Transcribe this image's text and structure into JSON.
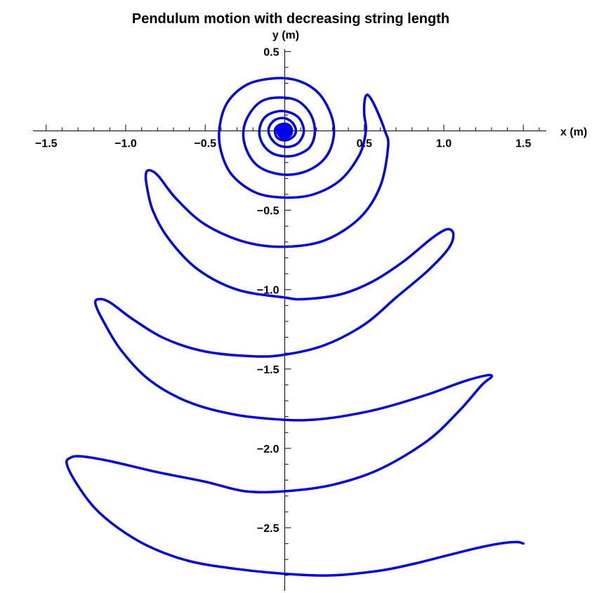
{
  "chart_data": {
    "type": "line",
    "title": "Pendulum motion with decreasing string length",
    "xlabel": "x (m)",
    "ylabel": "y (m)",
    "xlim": [
      -1.57,
      1.66
    ],
    "ylim": [
      -2.83,
      0.5
    ],
    "x_ticks": [
      -1.5,
      -1.0,
      -0.5,
      0.5,
      1.0,
      1.5
    ],
    "x_tick_labels": [
      "−1.5",
      "−1.0",
      "−0.5",
      "0.5",
      "1.0",
      "1.5"
    ],
    "x_minor_step": 0.1,
    "y_ticks": [
      0.5,
      -0.5,
      -1.0,
      -1.5,
      -2.0,
      -2.5
    ],
    "y_tick_labels": [
      "0.5",
      "−0.5",
      "−1.0",
      "−1.5",
      "−2.0",
      "−2.5"
    ],
    "y_minor_step": 0.1,
    "grid": false,
    "line_color": "#0000ee",
    "series": [
      {
        "points": [
          [
            1.5,
            -2.6
          ],
          [
            1.46,
            -2.59
          ],
          [
            1.35,
            -2.6
          ],
          [
            1.2,
            -2.63
          ],
          [
            1.0,
            -2.68
          ],
          [
            0.8,
            -2.73
          ],
          [
            0.6,
            -2.77
          ],
          [
            0.3,
            -2.8
          ],
          [
            0.0,
            -2.79
          ],
          [
            -0.3,
            -2.76
          ],
          [
            -0.6,
            -2.71
          ],
          [
            -0.85,
            -2.62
          ],
          [
            -1.05,
            -2.5
          ],
          [
            -1.2,
            -2.37
          ],
          [
            -1.31,
            -2.22
          ],
          [
            -1.37,
            -2.1
          ],
          [
            -1.35,
            -2.06
          ],
          [
            -1.28,
            -2.05
          ],
          [
            -1.1,
            -2.08
          ],
          [
            -0.8,
            -2.15
          ],
          [
            -0.5,
            -2.21
          ],
          [
            -0.25,
            -2.27
          ],
          [
            0.0,
            -2.27
          ],
          [
            0.3,
            -2.23
          ],
          [
            0.6,
            -2.13
          ],
          [
            0.9,
            -1.95
          ],
          [
            1.1,
            -1.76
          ],
          [
            1.24,
            -1.6
          ],
          [
            1.3,
            -1.55
          ],
          [
            1.27,
            -1.54
          ],
          [
            1.12,
            -1.58
          ],
          [
            0.9,
            -1.66
          ],
          [
            0.6,
            -1.75
          ],
          [
            0.35,
            -1.8
          ],
          [
            0.17,
            -1.82
          ],
          [
            0.0,
            -1.82
          ],
          [
            -0.3,
            -1.79
          ],
          [
            -0.6,
            -1.71
          ],
          [
            -0.85,
            -1.57
          ],
          [
            -1.03,
            -1.38
          ],
          [
            -1.14,
            -1.2
          ],
          [
            -1.19,
            -1.09
          ],
          [
            -1.17,
            -1.06
          ],
          [
            -1.1,
            -1.08
          ],
          [
            -0.95,
            -1.19
          ],
          [
            -0.75,
            -1.31
          ],
          [
            -0.5,
            -1.39
          ],
          [
            -0.2,
            -1.42
          ],
          [
            0.0,
            -1.41
          ],
          [
            0.25,
            -1.35
          ],
          [
            0.5,
            -1.22
          ],
          [
            0.7,
            -1.05
          ],
          [
            0.9,
            -0.88
          ],
          [
            1.03,
            -0.74
          ],
          [
            1.06,
            -0.65
          ],
          [
            1.02,
            -0.62
          ],
          [
            0.92,
            -0.68
          ],
          [
            0.75,
            -0.82
          ],
          [
            0.55,
            -0.95
          ],
          [
            0.35,
            -1.03
          ],
          [
            0.12,
            -1.06
          ],
          [
            0.0,
            -1.05
          ],
          [
            -0.3,
            -1.0
          ],
          [
            -0.55,
            -0.87
          ],
          [
            -0.73,
            -0.68
          ],
          [
            -0.83,
            -0.5
          ],
          [
            -0.87,
            -0.33
          ],
          [
            -0.87,
            -0.26
          ],
          [
            -0.84,
            -0.25
          ],
          [
            -0.79,
            -0.29
          ],
          [
            -0.68,
            -0.43
          ],
          [
            -0.5,
            -0.59
          ],
          [
            -0.25,
            -0.7
          ],
          [
            0.0,
            -0.73
          ],
          [
            0.25,
            -0.69
          ],
          [
            0.47,
            -0.55
          ],
          [
            0.6,
            -0.35
          ],
          [
            0.65,
            -0.1
          ],
          [
            0.63,
            0.0
          ],
          [
            0.57,
            0.15
          ],
          [
            0.53,
            0.22
          ],
          [
            0.51,
            0.22
          ],
          [
            0.5,
            0.17
          ],
          [
            0.5,
            0.1
          ],
          [
            0.51,
            0.0
          ],
          [
            0.47,
            -0.15
          ],
          [
            0.35,
            -0.31
          ],
          [
            0.18,
            -0.4
          ],
          [
            0.0,
            -0.42
          ],
          [
            -0.18,
            -0.39
          ],
          [
            -0.33,
            -0.28
          ],
          [
            -0.4,
            -0.13
          ],
          [
            -0.41,
            0.02
          ],
          [
            -0.36,
            0.18
          ],
          [
            -0.24,
            0.29
          ],
          [
            -0.08,
            0.33
          ],
          [
            0.07,
            0.32
          ],
          [
            0.2,
            0.25
          ],
          [
            0.28,
            0.13
          ],
          [
            0.31,
            0.0
          ],
          [
            0.28,
            -0.13
          ],
          [
            0.2,
            -0.22
          ],
          [
            0.08,
            -0.27
          ],
          [
            -0.05,
            -0.27
          ],
          [
            -0.17,
            -0.22
          ],
          [
            -0.24,
            -0.12
          ],
          [
            -0.26,
            0.0
          ],
          [
            -0.22,
            0.11
          ],
          [
            -0.14,
            0.19
          ],
          [
            -0.03,
            0.21
          ],
          [
            0.08,
            0.19
          ],
          [
            0.16,
            0.11
          ],
          [
            0.19,
            0.0
          ],
          [
            0.16,
            -0.1
          ],
          [
            0.08,
            -0.15
          ],
          [
            0.0,
            -0.16
          ],
          [
            -0.08,
            -0.14
          ],
          [
            -0.14,
            -0.08
          ],
          [
            -0.16,
            0.0
          ],
          [
            -0.13,
            0.08
          ],
          [
            -0.06,
            0.12
          ],
          [
            0.02,
            0.12
          ],
          [
            0.09,
            0.08
          ],
          [
            0.12,
            0.0
          ],
          [
            0.09,
            -0.07
          ],
          [
            0.03,
            -0.1
          ],
          [
            -0.04,
            -0.09
          ],
          [
            -0.09,
            -0.04
          ],
          [
            -0.1,
            0.02
          ],
          [
            -0.06,
            0.07
          ],
          [
            0.0,
            0.08
          ],
          [
            0.05,
            0.05
          ],
          [
            0.07,
            0.0
          ],
          [
            0.05,
            -0.04
          ],
          [
            0.0,
            -0.06
          ],
          [
            -0.05,
            -0.04
          ],
          [
            -0.06,
            0.01
          ],
          [
            -0.03,
            0.04
          ],
          [
            0.02,
            0.04
          ],
          [
            0.04,
            0.0
          ],
          [
            0.02,
            -0.03
          ],
          [
            -0.02,
            -0.03
          ],
          [
            -0.03,
            0.0
          ]
        ]
      }
    ]
  }
}
